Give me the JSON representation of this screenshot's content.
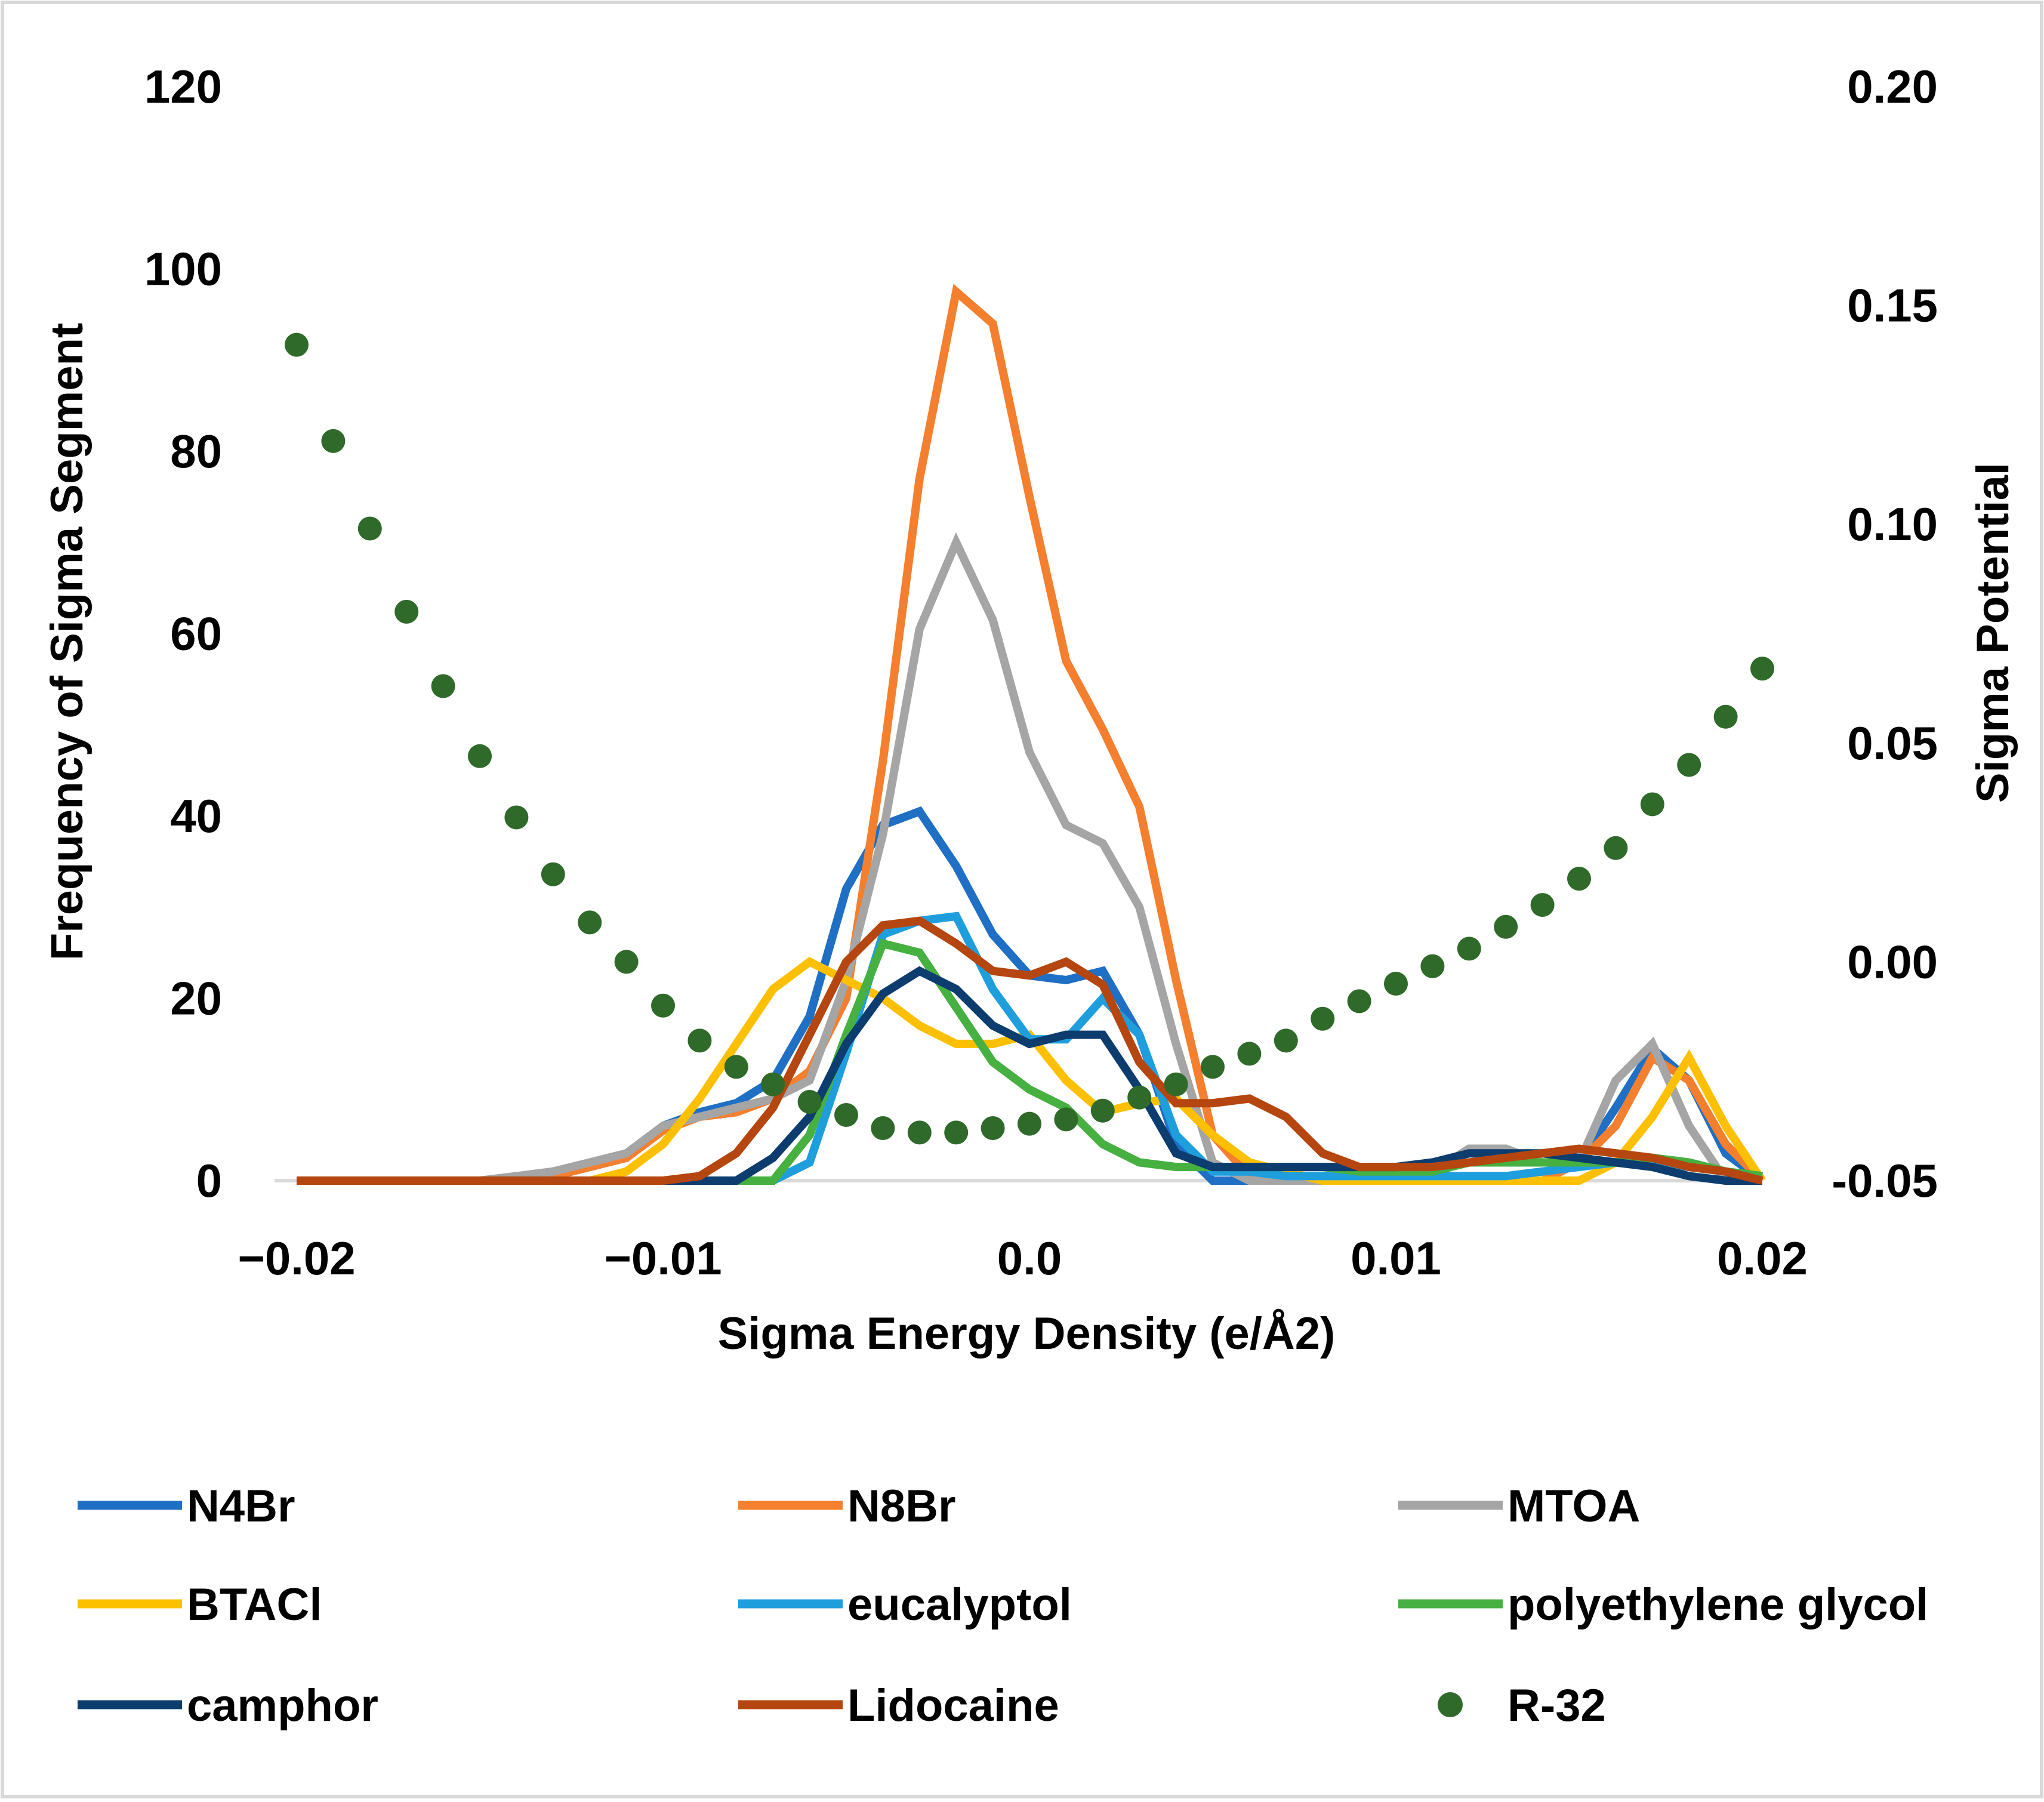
{
  "chart_data": {
    "type": "line",
    "title": "",
    "xlabel": "Sigma Energy Density (e/Å2)",
    "ylabel": "Frequency of Sigma Segment",
    "y2label": "Sigma Potential",
    "xlim": [
      -0.02,
      0.02
    ],
    "ylim": [
      0,
      120
    ],
    "y2lim": [
      -0.05,
      0.2
    ],
    "grid": false,
    "legend_position": "bottom",
    "x_ticks": [
      -0.02,
      -0.01,
      0.0,
      0.01,
      0.02
    ],
    "x_tick_labels": [
      "−0.02",
      "−0.01",
      "0.0",
      "0.01",
      "0.02"
    ],
    "y_ticks": [
      0,
      20,
      40,
      60,
      80,
      100,
      120
    ],
    "y_tick_labels": [
      "0",
      "20",
      "40",
      "60",
      "80",
      "100",
      "120"
    ],
    "y2_ticks": [
      -0.05,
      0.0,
      0.05,
      0.1,
      0.15,
      0.2
    ],
    "y2_tick_labels": [
      "-0.05",
      "0.00",
      "0.05",
      "0.10",
      "0.15",
      "0.20"
    ],
    "x": [
      -0.02,
      -0.019,
      -0.018,
      -0.017,
      -0.016,
      -0.015,
      -0.014,
      -0.013,
      -0.012,
      -0.011,
      -0.01,
      -0.009,
      -0.008,
      -0.007,
      -0.006,
      -0.005,
      -0.004,
      -0.003,
      -0.002,
      -0.001,
      0.0,
      0.001,
      0.002,
      0.003,
      0.004,
      0.005,
      0.006,
      0.007,
      0.008,
      0.009,
      0.01,
      0.011,
      0.012,
      0.013,
      0.014,
      0.015,
      0.016,
      0.017,
      0.018,
      0.019,
      0.02
    ],
    "series": [
      {
        "name": "N4Br",
        "color": "#1f6fc4",
        "axis": "left",
        "values": [
          0,
          0,
          0,
          0,
          0,
          0,
          0,
          0.5,
          1.5,
          2.5,
          6,
          7.5,
          8.5,
          11,
          18,
          32,
          39,
          40.5,
          34.5,
          27,
          22.5,
          22,
          23,
          16,
          4,
          0,
          0,
          0,
          0,
          0,
          0,
          0,
          0,
          0,
          0,
          2,
          8,
          14.5,
          11,
          3,
          0
        ]
      },
      {
        "name": "N8Br",
        "color": "#f47f2e",
        "axis": "left",
        "values": [
          0,
          0,
          0,
          0,
          0,
          0,
          0,
          0.5,
          1.5,
          2.5,
          5.5,
          7,
          7.5,
          9,
          12,
          20,
          46,
          77,
          97.5,
          94,
          75,
          57,
          49.5,
          41,
          22,
          5,
          0.5,
          0,
          0,
          0,
          0,
          0,
          0,
          0,
          0,
          2,
          6,
          13.5,
          11,
          4,
          0
        ]
      },
      {
        "name": "MTOA",
        "color": "#a5a5a5",
        "axis": "left",
        "values": [
          0,
          0,
          0,
          0,
          0,
          0,
          0.5,
          1,
          2,
          3,
          6,
          7,
          8,
          9,
          11,
          22,
          38,
          60.5,
          70,
          61.5,
          47,
          39,
          37,
          30,
          15,
          2,
          0,
          0,
          0,
          0,
          0.5,
          1,
          3.5,
          3.5,
          2,
          2,
          11,
          15,
          6,
          0,
          0
        ]
      },
      {
        "name": "BTACl",
        "color": "#fdc000",
        "axis": "left",
        "values": [
          0,
          0,
          0,
          0,
          0,
          0,
          0,
          0,
          0,
          1,
          4,
          9,
          15,
          21,
          24,
          22,
          20,
          17,
          15,
          15,
          16,
          11,
          7.5,
          8.5,
          9,
          5,
          2,
          1,
          0,
          0,
          0,
          0,
          0,
          0,
          0,
          0,
          2,
          7,
          13.5,
          6,
          0
        ]
      },
      {
        "name": "eucalyptol",
        "color": "#1f9ede",
        "axis": "left",
        "values": [
          0,
          0,
          0,
          0,
          0,
          0,
          0,
          0,
          0,
          0,
          0,
          0,
          0,
          0,
          2,
          14,
          27,
          28.5,
          29,
          21,
          15.5,
          15.5,
          20,
          16,
          5,
          1,
          1,
          0.5,
          0.5,
          0.5,
          0.5,
          0.5,
          0.5,
          0.5,
          1,
          1.5,
          2,
          2,
          1.5,
          1,
          0.5
        ]
      },
      {
        "name": "polyethylene glycol",
        "color": "#46b041",
        "axis": "left",
        "values": [
          0,
          0,
          0,
          0,
          0,
          0,
          0,
          0,
          0,
          0,
          0,
          0,
          0,
          0,
          5,
          16,
          26,
          25,
          19,
          13,
          10,
          8,
          4,
          2,
          1.5,
          1.5,
          1.5,
          1.5,
          1.5,
          1,
          1,
          1,
          2,
          2,
          2,
          2,
          2,
          2.5,
          2,
          1,
          0.5
        ]
      },
      {
        "name": "camphor",
        "color": "#0c3d6e",
        "axis": "left",
        "values": [
          0,
          0,
          0,
          0,
          0,
          0,
          0,
          0,
          0,
          0,
          0,
          0,
          0,
          2.5,
          7,
          15,
          20.5,
          23,
          21,
          17,
          15,
          16,
          16,
          10,
          3,
          1.5,
          1.5,
          1.5,
          1.5,
          1.5,
          1.5,
          2,
          3,
          3,
          3,
          2.5,
          2,
          1.5,
          0.5,
          0,
          0
        ]
      },
      {
        "name": "Lidocaine",
        "color": "#b5460f",
        "axis": "left",
        "values": [
          0,
          0,
          0,
          0,
          0,
          0,
          0,
          0,
          0,
          0,
          0,
          0.5,
          3,
          8,
          16,
          24,
          28,
          28.5,
          26,
          23,
          22.5,
          24,
          21.5,
          13,
          8.5,
          8.5,
          9,
          7,
          3,
          1.5,
          1.5,
          1.5,
          2,
          2.5,
          3,
          3.5,
          3,
          2.5,
          1.5,
          1,
          0
        ]
      },
      {
        "name": "R-32",
        "color": "#2f6a2a",
        "axis": "right",
        "style": "markers",
        "values": [
          0.141,
          0.119,
          0.099,
          0.08,
          0.063,
          0.047,
          0.033,
          0.02,
          0.009,
          0.0,
          -0.01,
          -0.018,
          -0.024,
          -0.028,
          -0.032,
          -0.035,
          -0.038,
          -0.039,
          -0.039,
          -0.038,
          -0.037,
          -0.036,
          -0.034,
          -0.031,
          -0.028,
          -0.024,
          -0.021,
          -0.018,
          -0.013,
          -0.009,
          -0.005,
          -0.001,
          0.003,
          0.008,
          0.013,
          0.019,
          0.026,
          0.036,
          0.045,
          0.056,
          0.067
        ]
      }
    ]
  }
}
